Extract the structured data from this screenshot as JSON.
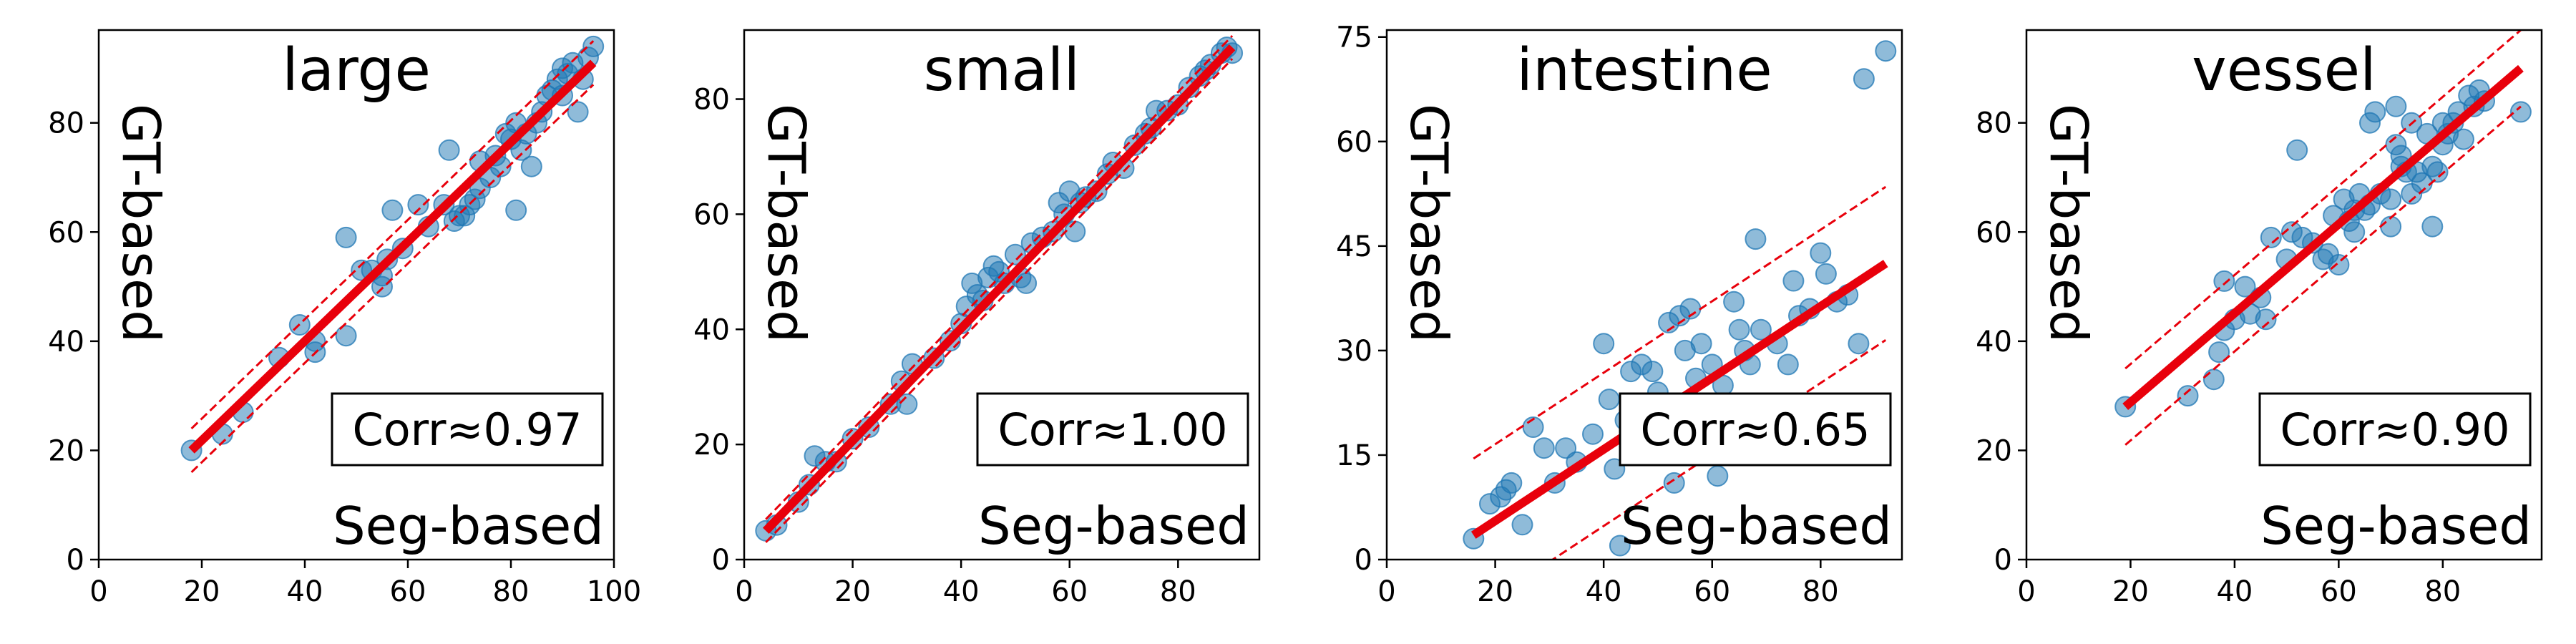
{
  "chart_data": [
    {
      "type": "scatter",
      "title": "large",
      "xlabel": "Seg-based",
      "ylabel": "GT-based",
      "annotation": "Corr≈0.97",
      "xlim": [
        0,
        100
      ],
      "ylim": [
        0,
        97
      ],
      "xticks": [
        0,
        20,
        40,
        60,
        80,
        100
      ],
      "yticks": [
        0,
        20,
        40,
        60,
        80
      ],
      "fit": [
        [
          18,
          20
        ],
        [
          96,
          91
        ]
      ],
      "band": 4,
      "points": [
        [
          18,
          20
        ],
        [
          24,
          23
        ],
        [
          28,
          27
        ],
        [
          35,
          37
        ],
        [
          39,
          43
        ],
        [
          42,
          38
        ],
        [
          42,
          40
        ],
        [
          48,
          41
        ],
        [
          48,
          59
        ],
        [
          51,
          53
        ],
        [
          53,
          53
        ],
        [
          55,
          50
        ],
        [
          55,
          52
        ],
        [
          56,
          55
        ],
        [
          57,
          64
        ],
        [
          59,
          57
        ],
        [
          62,
          65
        ],
        [
          64,
          61
        ],
        [
          67,
          65
        ],
        [
          68,
          75
        ],
        [
          69,
          62
        ],
        [
          70,
          63
        ],
        [
          71,
          63
        ],
        [
          72,
          65
        ],
        [
          73,
          66
        ],
        [
          74,
          73
        ],
        [
          74,
          68
        ],
        [
          76,
          70
        ],
        [
          77,
          74
        ],
        [
          78,
          72
        ],
        [
          79,
          78
        ],
        [
          80,
          77
        ],
        [
          81,
          64
        ],
        [
          81,
          80
        ],
        [
          82,
          75
        ],
        [
          83,
          78
        ],
        [
          84,
          72
        ],
        [
          85,
          80
        ],
        [
          86,
          82
        ],
        [
          87,
          85
        ],
        [
          88,
          86
        ],
        [
          89,
          88
        ],
        [
          90,
          90
        ],
        [
          90,
          85
        ],
        [
          91,
          89
        ],
        [
          92,
          91
        ],
        [
          93,
          82
        ],
        [
          94,
          88
        ],
        [
          95,
          92
        ],
        [
          96,
          94
        ]
      ]
    },
    {
      "type": "scatter",
      "title": "small",
      "xlabel": "Seg-based",
      "ylabel": "GT-based",
      "annotation": "Corr≈1.00",
      "xlim": [
        0,
        95
      ],
      "ylim": [
        0,
        92
      ],
      "xticks": [
        0,
        20,
        40,
        60,
        80
      ],
      "yticks": [
        0,
        20,
        40,
        60,
        80
      ],
      "fit": [
        [
          4,
          5
        ],
        [
          90,
          89
        ]
      ],
      "band": 2,
      "points": [
        [
          4,
          5
        ],
        [
          6,
          6
        ],
        [
          10,
          10
        ],
        [
          12,
          13
        ],
        [
          13,
          18
        ],
        [
          15,
          17
        ],
        [
          17,
          17
        ],
        [
          20,
          21
        ],
        [
          23,
          23
        ],
        [
          27,
          27
        ],
        [
          29,
          31
        ],
        [
          30,
          27
        ],
        [
          31,
          34
        ],
        [
          35,
          35
        ],
        [
          38,
          38
        ],
        [
          40,
          41
        ],
        [
          41,
          44
        ],
        [
          42,
          48
        ],
        [
          43,
          46
        ],
        [
          44,
          45
        ],
        [
          45,
          49
        ],
        [
          46,
          51
        ],
        [
          47,
          50
        ],
        [
          48,
          48
        ],
        [
          50,
          53
        ],
        [
          51,
          49
        ],
        [
          52,
          48
        ],
        [
          53,
          55
        ],
        [
          55,
          56
        ],
        [
          57,
          57
        ],
        [
          58,
          62
        ],
        [
          59,
          60
        ],
        [
          60,
          64
        ],
        [
          61,
          57
        ],
        [
          62,
          62
        ],
        [
          63,
          63
        ],
        [
          65,
          64
        ],
        [
          67,
          67
        ],
        [
          68,
          69
        ],
        [
          70,
          68
        ],
        [
          72,
          72
        ],
        [
          74,
          74
        ],
        [
          75,
          75
        ],
        [
          76,
          78
        ],
        [
          78,
          78
        ],
        [
          80,
          79
        ],
        [
          82,
          82
        ],
        [
          84,
          84
        ],
        [
          85,
          85
        ],
        [
          86,
          86
        ],
        [
          88,
          88
        ],
        [
          89,
          89
        ],
        [
          90,
          88
        ]
      ]
    },
    {
      "type": "scatter",
      "title": "intestine",
      "xlabel": "Seg-based",
      "ylabel": "GT-based",
      "annotation": "Corr≈0.65",
      "xlim": [
        0,
        95
      ],
      "ylim": [
        0,
        76
      ],
      "xticks": [
        0,
        20,
        40,
        60,
        80
      ],
      "yticks": [
        0,
        15,
        30,
        45,
        60,
        75
      ],
      "fit": [
        [
          16,
          3.5
        ],
        [
          92,
          42.5
        ]
      ],
      "band": 11,
      "points": [
        [
          16,
          3
        ],
        [
          19,
          8
        ],
        [
          21,
          9
        ],
        [
          22,
          10
        ],
        [
          23,
          11
        ],
        [
          25,
          5
        ],
        [
          27,
          19
        ],
        [
          29,
          16
        ],
        [
          31,
          11
        ],
        [
          33,
          16
        ],
        [
          35,
          14
        ],
        [
          38,
          18
        ],
        [
          40,
          31
        ],
        [
          41,
          23
        ],
        [
          42,
          13
        ],
        [
          43,
          2
        ],
        [
          44,
          20
        ],
        [
          45,
          27
        ],
        [
          47,
          28
        ],
        [
          49,
          27
        ],
        [
          50,
          24
        ],
        [
          51,
          18
        ],
        [
          52,
          34
        ],
        [
          53,
          11
        ],
        [
          54,
          35
        ],
        [
          55,
          30
        ],
        [
          56,
          36
        ],
        [
          57,
          26
        ],
        [
          58,
          31
        ],
        [
          59,
          22
        ],
        [
          60,
          28
        ],
        [
          61,
          12
        ],
        [
          62,
          25
        ],
        [
          63,
          20
        ],
        [
          64,
          37
        ],
        [
          65,
          33
        ],
        [
          66,
          30
        ],
        [
          67,
          28
        ],
        [
          68,
          46
        ],
        [
          69,
          33
        ],
        [
          70,
          15
        ],
        [
          72,
          31
        ],
        [
          74,
          28
        ],
        [
          75,
          40
        ],
        [
          76,
          35
        ],
        [
          78,
          36
        ],
        [
          80,
          44
        ],
        [
          81,
          41
        ],
        [
          83,
          37
        ],
        [
          85,
          38
        ],
        [
          87,
          31
        ],
        [
          88,
          69
        ],
        [
          92,
          73
        ]
      ]
    },
    {
      "type": "scatter",
      "title": "vessel",
      "xlabel": "Seg-based",
      "ylabel": "GT-based",
      "annotation": "Corr≈0.90",
      "xlim": [
        0,
        99
      ],
      "ylim": [
        0,
        97
      ],
      "xticks": [
        0,
        20,
        40,
        60,
        80
      ],
      "yticks": [
        0,
        20,
        40,
        60,
        80
      ],
      "fit": [
        [
          19,
          28
        ],
        [
          95,
          90
        ]
      ],
      "band": 7,
      "points": [
        [
          19,
          28
        ],
        [
          31,
          30
        ],
        [
          36,
          33
        ],
        [
          37,
          38
        ],
        [
          38,
          42
        ],
        [
          38,
          51
        ],
        [
          40,
          44
        ],
        [
          42,
          50
        ],
        [
          43,
          45
        ],
        [
          45,
          48
        ],
        [
          46,
          44
        ],
        [
          47,
          59
        ],
        [
          50,
          55
        ],
        [
          51,
          60
        ],
        [
          52,
          75
        ],
        [
          53,
          59
        ],
        [
          55,
          58
        ],
        [
          57,
          55
        ],
        [
          58,
          56
        ],
        [
          59,
          63
        ],
        [
          60,
          54
        ],
        [
          61,
          66
        ],
        [
          62,
          62
        ],
        [
          63,
          60
        ],
        [
          63,
          64
        ],
        [
          64,
          67
        ],
        [
          65,
          64
        ],
        [
          66,
          65
        ],
        [
          66,
          80
        ],
        [
          67,
          82
        ],
        [
          68,
          67
        ],
        [
          70,
          66
        ],
        [
          70,
          61
        ],
        [
          71,
          83
        ],
        [
          71,
          76
        ],
        [
          72,
          74
        ],
        [
          72,
          72
        ],
        [
          73,
          71
        ],
        [
          74,
          67
        ],
        [
          74,
          80
        ],
        [
          75,
          71
        ],
        [
          76,
          69
        ],
        [
          77,
          78
        ],
        [
          78,
          72
        ],
        [
          78,
          61
        ],
        [
          79,
          71
        ],
        [
          80,
          76
        ],
        [
          80,
          80
        ],
        [
          81,
          78
        ],
        [
          82,
          80
        ],
        [
          83,
          82
        ],
        [
          84,
          77
        ],
        [
          85,
          85
        ],
        [
          86,
          83
        ],
        [
          87,
          86
        ],
        [
          88,
          84
        ],
        [
          95,
          82
        ]
      ]
    }
  ],
  "colors": {
    "points": "#1f77b4",
    "fit": "#e8000b",
    "band": "#e8000b"
  }
}
